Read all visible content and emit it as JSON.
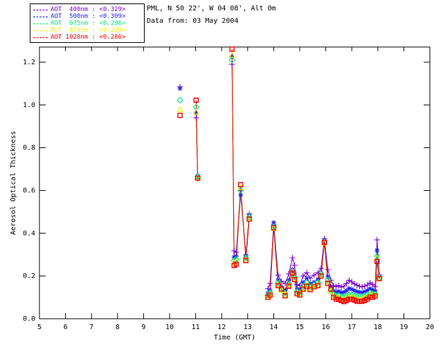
{
  "header": {
    "site_line": "PML, N 50 22', W 04 08', Alt 0m",
    "date_line": "Data from: 03 May 2004"
  },
  "chart_data": {
    "type": "line",
    "title": "",
    "xlabel": "Time (GMT)",
    "ylabel": "Aerosol Optical Thickness",
    "xlim": [
      5,
      20
    ],
    "ylim": [
      0,
      1.271
    ],
    "grid": false,
    "legend_position": "top-left",
    "xticks": [
      5,
      6,
      7,
      8,
      9,
      10,
      11,
      12,
      13,
      14,
      15,
      16,
      17,
      18,
      19,
      20
    ],
    "yticks": [
      0.0,
      0.2,
      0.4,
      0.6,
      0.8,
      1.0,
      1.2
    ],
    "ytick_labels": [
      "0.0",
      "0.2",
      "0.4",
      "0.6",
      "0.8",
      "1.0",
      "1.2"
    ],
    "series": [
      {
        "id": "aot400",
        "name": "AOT 400nm",
        "mean": "<0.329>",
        "legend_label": "AOT  400nm : <0.329>",
        "color": "#7a00cc",
        "marker": "plus"
      },
      {
        "id": "aot500",
        "name": "AOT 500nm",
        "mean": "<0.309>",
        "legend_label": "AOT  500nm : <0.309>",
        "color": "#2222ee",
        "marker": "asterisk"
      },
      {
        "id": "aot675",
        "name": "AOT 675nm",
        "mean": "<0.296>",
        "legend_label": "AOT  675nm : <0.296>",
        "color": "#00e87d",
        "marker": "diamond"
      },
      {
        "id": "aot870",
        "name": "AOT 870nm",
        "mean": "<0.290>",
        "legend_label": "AOT  870nm : <0.290>",
        "color": "#f2f200",
        "marker": "triangle"
      },
      {
        "id": "aot1020",
        "name": "AOT 1020nm",
        "mean": "<0.286>",
        "legend_label": "AOT 1020nm : <0.286>",
        "color": "#ee0000",
        "marker": "square"
      }
    ],
    "segments": [
      {
        "line": false,
        "t": [
          10.4
        ],
        "values": {
          "aot400": [
            1.085
          ],
          "aot500": [
            1.077
          ],
          "aot675": [
            1.022
          ],
          "aot870": [
            0.977
          ],
          "aot1020": [
            0.951
          ]
        }
      },
      {
        "line": true,
        "t": [
          11.02,
          11.08
        ],
        "values": {
          "aot400": [
            0.94,
            0.655
          ],
          "aot500": [
            0.963,
            0.67
          ],
          "aot675": [
            0.99,
            0.665
          ],
          "aot870": [
            0.967,
            0.66
          ],
          "aot1020": [
            1.022,
            0.658
          ]
        }
      },
      {
        "line": true,
        "t": [
          12.4,
          12.48,
          12.56,
          12.73,
          12.93,
          13.06
        ],
        "values": {
          "aot400": [
            1.19,
            0.317,
            0.31,
            0.6,
            0.3,
            0.49
          ],
          "aot500": [
            1.226,
            0.288,
            0.292,
            0.579,
            0.294,
            0.485
          ],
          "aot675": [
            1.21,
            0.272,
            0.278,
            0.6,
            0.285,
            0.475
          ],
          "aot870": [
            1.232,
            0.262,
            0.268,
            0.612,
            0.278,
            0.47
          ],
          "aot1020": [
            1.261,
            0.249,
            0.255,
            0.627,
            0.272,
            0.466
          ]
        }
      },
      {
        "line": true,
        "t": [
          13.78,
          13.86,
          14.0,
          14.17,
          14.3,
          14.44,
          14.58,
          14.72,
          14.8,
          14.9,
          15.0,
          15.13,
          15.27,
          15.4,
          15.55,
          15.7,
          15.82,
          15.95,
          16.08,
          16.2,
          16.3,
          16.4,
          16.5,
          16.6,
          16.7,
          16.8,
          16.9,
          17.0,
          17.1,
          17.2,
          17.3,
          17.4,
          17.5,
          17.6,
          17.7,
          17.8,
          17.9,
          17.97,
          18.06
        ],
        "values": {
          "aot400": [
            0.14,
            0.165,
            0.44,
            0.204,
            0.175,
            0.165,
            0.21,
            0.285,
            0.25,
            0.16,
            0.155,
            0.2,
            0.215,
            0.19,
            0.204,
            0.215,
            0.236,
            0.375,
            0.23,
            0.18,
            0.155,
            0.15,
            0.155,
            0.148,
            0.152,
            0.165,
            0.18,
            0.172,
            0.163,
            0.157,
            0.152,
            0.149,
            0.153,
            0.158,
            0.168,
            0.16,
            0.15,
            0.369,
            0.205
          ],
          "aot500": [
            0.12,
            0.133,
            0.45,
            0.181,
            0.15,
            0.133,
            0.18,
            0.23,
            0.21,
            0.14,
            0.135,
            0.17,
            0.19,
            0.165,
            0.171,
            0.185,
            0.215,
            0.366,
            0.197,
            0.15,
            0.13,
            0.125,
            0.128,
            0.122,
            0.124,
            0.132,
            0.142,
            0.138,
            0.132,
            0.127,
            0.124,
            0.123,
            0.127,
            0.132,
            0.141,
            0.135,
            0.13,
            0.32,
            0.198
          ],
          "aot675": [
            0.11,
            0.122,
            0.43,
            0.168,
            0.14,
            0.12,
            0.165,
            0.215,
            0.195,
            0.128,
            0.122,
            0.152,
            0.168,
            0.15,
            0.158,
            0.17,
            0.208,
            0.358,
            0.182,
            0.135,
            0.115,
            0.108,
            0.108,
            0.102,
            0.102,
            0.108,
            0.113,
            0.112,
            0.107,
            0.103,
            0.102,
            0.102,
            0.106,
            0.112,
            0.121,
            0.117,
            0.115,
            0.294,
            0.192
          ],
          "aot870": [
            0.105,
            0.115,
            0.422,
            0.16,
            0.133,
            0.112,
            0.157,
            0.22,
            0.188,
            0.121,
            0.115,
            0.143,
            0.157,
            0.141,
            0.152,
            0.16,
            0.204,
            0.354,
            0.172,
            0.128,
            0.105,
            0.098,
            0.097,
            0.092,
            0.091,
            0.096,
            0.101,
            0.101,
            0.097,
            0.093,
            0.092,
            0.092,
            0.096,
            0.102,
            0.111,
            0.108,
            0.11,
            0.285,
            0.19
          ],
          "aot1020": [
            0.1,
            0.11,
            0.425,
            0.155,
            0.139,
            0.107,
            0.152,
            0.214,
            0.183,
            0.117,
            0.111,
            0.138,
            0.152,
            0.136,
            0.149,
            0.155,
            0.2,
            0.357,
            0.165,
            0.139,
            0.1,
            0.092,
            0.09,
            0.085,
            0.08,
            0.086,
            0.091,
            0.091,
            0.087,
            0.082,
            0.081,
            0.082,
            0.086,
            0.092,
            0.101,
            0.1,
            0.107,
            0.268,
            0.188
          ]
        }
      }
    ]
  }
}
